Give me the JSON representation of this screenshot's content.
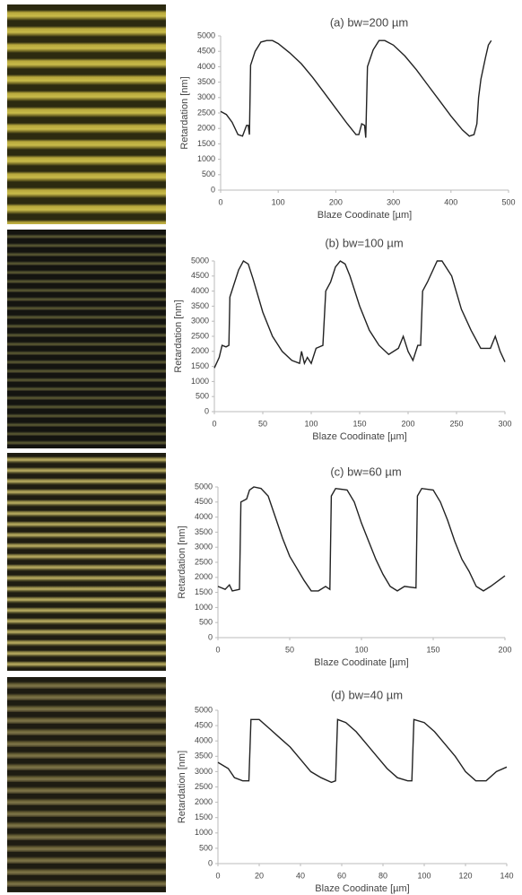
{
  "chart_data": [
    {
      "type": "line",
      "title": "(a) bw=200 µm",
      "x_label": "Blaze Coodinate [µm]",
      "y_label": "Retardation [nm]",
      "xlim": [
        0,
        500
      ],
      "ylim": [
        0,
        5000
      ],
      "xticks": [
        0,
        100,
        200,
        300,
        400,
        500
      ],
      "yticks": [
        0,
        500,
        1000,
        1500,
        2000,
        2500,
        3000,
        3500,
        4000,
        4500,
        5000
      ],
      "color": "#222222",
      "x": [
        0,
        10,
        20,
        30,
        38,
        45,
        48,
        50,
        52,
        60,
        70,
        80,
        90,
        100,
        120,
        140,
        160,
        180,
        200,
        220,
        235,
        240,
        245,
        250,
        252,
        255,
        265,
        275,
        285,
        300,
        320,
        340,
        360,
        380,
        400,
        420,
        432,
        440,
        445,
        448,
        452,
        460,
        465,
        470
      ],
      "values": [
        2550,
        2450,
        2200,
        1800,
        1750,
        2100,
        2100,
        1800,
        4050,
        4500,
        4800,
        4850,
        4850,
        4750,
        4450,
        4100,
        3650,
        3150,
        2650,
        2150,
        1800,
        1800,
        2150,
        2100,
        1700,
        4000,
        4550,
        4850,
        4850,
        4700,
        4350,
        3900,
        3400,
        2900,
        2400,
        1950,
        1750,
        1800,
        2150,
        3000,
        3600,
        4300,
        4700,
        4850
      ]
    },
    {
      "type": "line",
      "title": "(b) bw=100 µm",
      "x_label": "Blaze Coodinate [µm]",
      "y_label": "Retardation [nm]",
      "xlim": [
        0,
        300
      ],
      "ylim": [
        0,
        5000
      ],
      "xticks": [
        0,
        50,
        100,
        150,
        200,
        250,
        300
      ],
      "yticks": [
        0,
        500,
        1000,
        1500,
        2000,
        2500,
        3000,
        3500,
        4000,
        4500,
        5000
      ],
      "color": "#222222",
      "x": [
        0,
        5,
        8,
        12,
        15,
        16,
        20,
        25,
        30,
        35,
        40,
        50,
        60,
        70,
        80,
        88,
        90,
        93,
        96,
        100,
        105,
        112,
        115,
        120,
        125,
        130,
        135,
        140,
        150,
        160,
        170,
        180,
        190,
        195,
        200,
        205,
        210,
        213,
        215,
        220,
        230,
        235,
        245,
        255,
        265,
        275,
        285,
        290,
        295,
        300
      ],
      "values": [
        1450,
        1800,
        2200,
        2150,
        2200,
        3800,
        4200,
        4700,
        5000,
        4900,
        4400,
        3300,
        2500,
        2000,
        1700,
        1600,
        2000,
        1600,
        1800,
        1600,
        2100,
        2200,
        4000,
        4300,
        4800,
        5000,
        4900,
        4500,
        3500,
        2700,
        2200,
        1900,
        2100,
        2500,
        2000,
        1700,
        2200,
        2200,
        4000,
        4300,
        5000,
        5000,
        4500,
        3400,
        2700,
        2100,
        2100,
        2500,
        2000,
        1650
      ]
    },
    {
      "type": "line",
      "title": "(c) bw=60 µm",
      "x_label": "Blaze Coodinate [µm]",
      "y_label": "Retardation [nm]",
      "xlim": [
        0,
        200
      ],
      "ylim": [
        0,
        5000
      ],
      "xticks": [
        0,
        50,
        100,
        150,
        200
      ],
      "yticks": [
        0,
        500,
        1000,
        1500,
        2000,
        2500,
        3000,
        3500,
        4000,
        4500,
        5000
      ],
      "color": "#222222",
      "x": [
        0,
        5,
        8,
        10,
        15,
        16,
        20,
        22,
        25,
        30,
        35,
        40,
        45,
        50,
        55,
        60,
        65,
        70,
        75,
        78,
        79,
        82,
        90,
        95,
        100,
        105,
        110,
        115,
        120,
        125,
        130,
        138,
        139,
        142,
        150,
        155,
        160,
        165,
        170,
        175,
        180,
        185,
        190,
        200
      ],
      "values": [
        1700,
        1600,
        1750,
        1550,
        1600,
        4500,
        4600,
        4900,
        5000,
        4950,
        4700,
        4000,
        3300,
        2700,
        2300,
        1900,
        1550,
        1550,
        1700,
        1600,
        4700,
        4950,
        4900,
        4500,
        3800,
        3200,
        2600,
        2100,
        1700,
        1550,
        1700,
        1650,
        4700,
        4950,
        4900,
        4500,
        3900,
        3200,
        2600,
        2200,
        1700,
        1550,
        1700,
        2050
      ]
    },
    {
      "type": "line",
      "title": "(d) bw=40 µm",
      "x_label": "Blaze Coodinate [µm]",
      "y_label": "Retardation [nm]",
      "xlim": [
        0,
        140
      ],
      "ylim": [
        0,
        5000
      ],
      "xticks": [
        0,
        20,
        40,
        60,
        80,
        100,
        120,
        140
      ],
      "yticks": [
        0,
        500,
        1000,
        1500,
        2000,
        2500,
        3000,
        3500,
        4000,
        4500,
        5000
      ],
      "color": "#222222",
      "x": [
        0,
        5,
        8,
        12,
        15,
        16,
        20,
        25,
        30,
        35,
        40,
        45,
        50,
        55,
        57,
        58,
        62,
        67,
        72,
        77,
        82,
        87,
        92,
        94,
        95,
        100,
        105,
        110,
        115,
        120,
        125,
        130,
        135,
        140
      ],
      "values": [
        3300,
        3100,
        2800,
        2700,
        2700,
        4700,
        4700,
        4400,
        4100,
        3800,
        3400,
        3000,
        2800,
        2650,
        2700,
        4700,
        4600,
        4300,
        3900,
        3500,
        3100,
        2800,
        2700,
        2700,
        4700,
        4600,
        4300,
        3900,
        3500,
        3000,
        2700,
        2700,
        3000,
        3150
      ]
    }
  ]
}
